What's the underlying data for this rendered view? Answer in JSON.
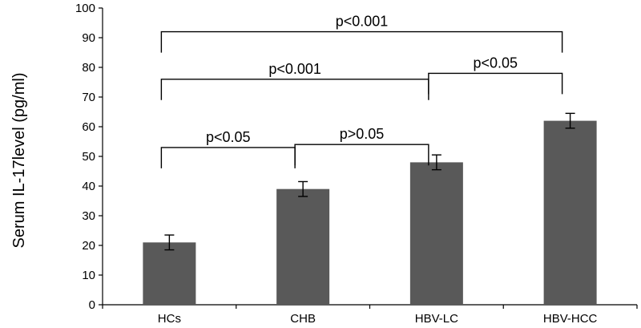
{
  "chart_data": {
    "type": "bar",
    "title": "",
    "xlabel": "",
    "ylabel": "Serum IL-17level (pg/ml)",
    "ylim": [
      0,
      100
    ],
    "yticks": [
      0,
      10,
      20,
      30,
      40,
      50,
      60,
      70,
      80,
      90,
      100
    ],
    "grid": false,
    "categories": [
      "HCs",
      "CHB",
      "HBV-LC",
      "HBV-HCC"
    ],
    "values": [
      21,
      39,
      48,
      62
    ],
    "errors": [
      2.5,
      2.5,
      2.5,
      2.5
    ],
    "bar_color": "#595959",
    "comparisons": [
      {
        "from": "HCs",
        "to": "CHB",
        "label": "p<0.05",
        "level": 53
      },
      {
        "from": "CHB",
        "to": "HBV-LC",
        "label": "p>0.05",
        "level": 54
      },
      {
        "from": "HCs",
        "to": "HBV-LC",
        "label": "p<0.001",
        "level": 76
      },
      {
        "from": "HBV-LC",
        "to": "HBV-HCC",
        "label": "p<0.05",
        "level": 78
      },
      {
        "from": "HCs",
        "to": "HBV-HCC",
        "label": "p<0.001",
        "level": 92
      }
    ]
  }
}
